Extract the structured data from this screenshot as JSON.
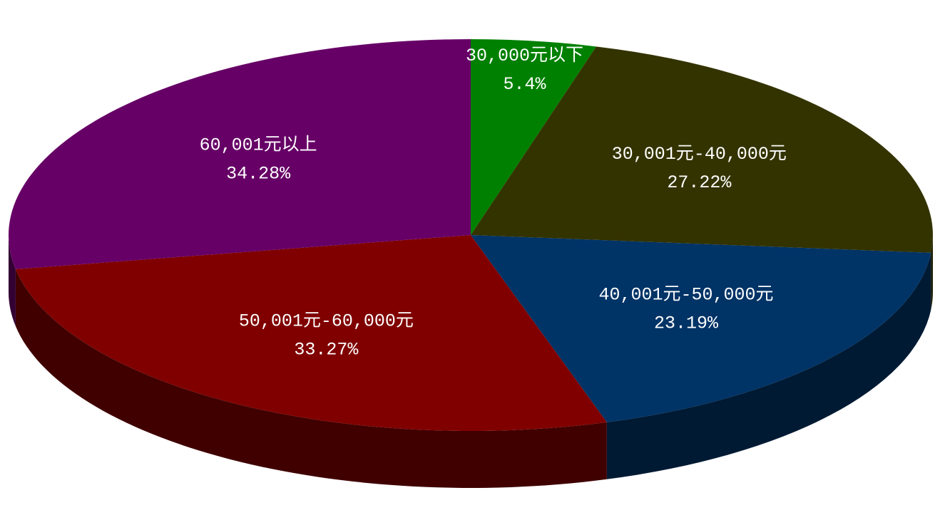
{
  "chart_data": {
    "type": "pie",
    "categories": [
      "30,000元以下",
      "30,001元-40,000元",
      "40,001元-50,000元",
      "50,001元-60,000元",
      "60,001元以上"
    ],
    "values": [
      5.4,
      27.22,
      23.19,
      33.27,
      34.28
    ],
    "value_labels": [
      "5.4%",
      "27.22%",
      "23.19%",
      "33.27%",
      "34.28%"
    ],
    "colors": [
      "#008000",
      "#333300",
      "#003366",
      "#800000",
      "#660066"
    ]
  }
}
